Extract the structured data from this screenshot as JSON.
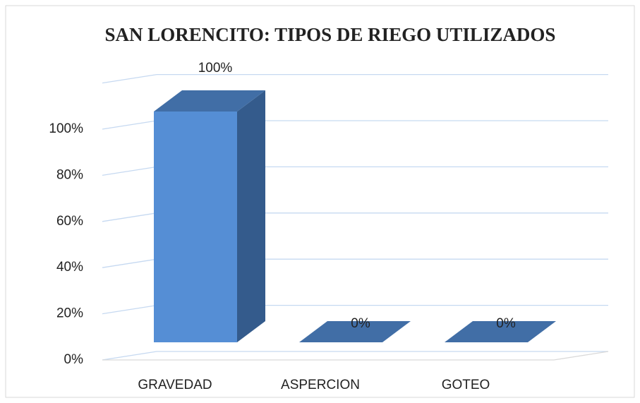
{
  "chart_data": {
    "type": "bar3d",
    "title": "SAN LORENCITO: TIPOS DE RIEGO UTILIZADOS",
    "categories": [
      "GRAVEDAD",
      "ASPERCION",
      "GOTEO"
    ],
    "values": [
      100,
      0,
      0
    ],
    "value_labels": [
      "100%",
      "0%",
      "0%"
    ],
    "color": "#558ed5",
    "ylim": [
      0,
      120
    ],
    "yticks": [
      {
        "value": 0,
        "label": "0%"
      },
      {
        "value": 20,
        "label": "20%"
      },
      {
        "value": 40,
        "label": "40%"
      },
      {
        "value": 60,
        "label": "60%"
      },
      {
        "value": 80,
        "label": "80%"
      },
      {
        "value": 100,
        "label": "100%"
      }
    ],
    "grid": true
  }
}
